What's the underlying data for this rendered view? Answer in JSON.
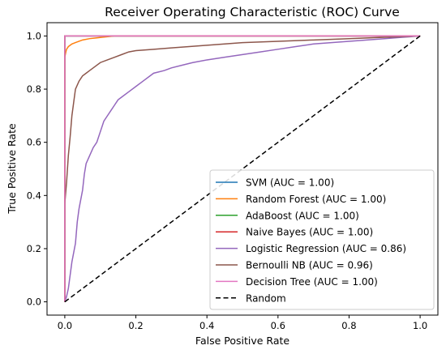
{
  "chart_data": {
    "type": "line",
    "title": "Receiver Operating Characteristic (ROC) Curve",
    "xlabel": "False Positive Rate",
    "ylabel": "True Positive Rate",
    "xlim": [
      -0.05,
      1.05
    ],
    "ylim": [
      -0.05,
      1.05
    ],
    "xticks": [
      0.0,
      0.2,
      0.4,
      0.6,
      0.8,
      1.0
    ],
    "yticks": [
      0.0,
      0.2,
      0.4,
      0.6,
      0.8,
      1.0
    ],
    "xtick_labels": [
      "0.0",
      "0.2",
      "0.4",
      "0.6",
      "0.8",
      "1.0"
    ],
    "ytick_labels": [
      "0.0",
      "0.2",
      "0.4",
      "0.6",
      "0.8",
      "1.0"
    ],
    "grid": false,
    "legend_position": "lower-right",
    "series": [
      {
        "name": "SVM (AUC = 1.00)",
        "color": "#1f77b4",
        "x": [
          0,
          0,
          1
        ],
        "y": [
          0,
          1,
          1
        ]
      },
      {
        "name": "Random Forest (AUC = 1.00)",
        "color": "#ff7f0e",
        "x": [
          0,
          0,
          0.003,
          0.005,
          0.01,
          0.015,
          0.02,
          0.03,
          0.04,
          0.05,
          0.07,
          0.09,
          0.11,
          0.14,
          1
        ],
        "y": [
          0,
          0.92,
          0.94,
          0.95,
          0.96,
          0.965,
          0.97,
          0.975,
          0.98,
          0.985,
          0.99,
          0.993,
          0.996,
          1,
          1
        ]
      },
      {
        "name": "AdaBoost (AUC = 1.00)",
        "color": "#2ca02c",
        "x": [
          0,
          0,
          1
        ],
        "y": [
          0,
          1,
          1
        ]
      },
      {
        "name": "Naive Bayes (AUC = 1.00)",
        "color": "#d62728",
        "x": [
          0,
          0,
          1
        ],
        "y": [
          0,
          1,
          1
        ]
      },
      {
        "name": "Logistic Regression (AUC = 0.86)",
        "color": "#9467bd",
        "x": [
          0,
          0.005,
          0.01,
          0.015,
          0.02,
          0.03,
          0.035,
          0.04,
          0.05,
          0.055,
          0.06,
          0.07,
          0.08,
          0.09,
          0.1,
          0.11,
          0.12,
          0.13,
          0.14,
          0.15,
          0.16,
          0.18,
          0.2,
          0.22,
          0.25,
          0.28,
          0.3,
          0.33,
          0.36,
          0.4,
          0.45,
          0.5,
          0.55,
          0.6,
          0.65,
          0.7,
          0.75,
          0.8,
          0.85,
          0.9,
          0.95,
          1.0
        ],
        "y": [
          0,
          0.02,
          0.05,
          0.1,
          0.15,
          0.22,
          0.3,
          0.35,
          0.42,
          0.48,
          0.52,
          0.55,
          0.58,
          0.6,
          0.64,
          0.68,
          0.7,
          0.72,
          0.74,
          0.76,
          0.77,
          0.79,
          0.81,
          0.83,
          0.86,
          0.87,
          0.88,
          0.89,
          0.9,
          0.91,
          0.92,
          0.93,
          0.94,
          0.95,
          0.96,
          0.97,
          0.975,
          0.98,
          0.985,
          0.99,
          0.995,
          1.0
        ]
      },
      {
        "name": "Bernoulli NB (AUC = 0.96)",
        "color": "#8c564b",
        "x": [
          0,
          0,
          0.005,
          0.01,
          0.015,
          0.02,
          0.025,
          0.03,
          0.04,
          0.05,
          0.06,
          0.07,
          0.08,
          0.1,
          0.12,
          0.14,
          0.16,
          0.18,
          0.2,
          0.25,
          0.3,
          0.35,
          0.4,
          0.5,
          0.6,
          0.7,
          0.8,
          0.9,
          1.0
        ],
        "y": [
          0,
          0.37,
          0.45,
          0.55,
          0.62,
          0.7,
          0.75,
          0.8,
          0.83,
          0.85,
          0.86,
          0.87,
          0.88,
          0.9,
          0.91,
          0.92,
          0.93,
          0.94,
          0.945,
          0.95,
          0.955,
          0.96,
          0.965,
          0.975,
          0.98,
          0.985,
          0.99,
          0.995,
          1.0
        ]
      },
      {
        "name": "Decision Tree (AUC = 1.00)",
        "color": "#e377c2",
        "x": [
          0,
          0,
          1
        ],
        "y": [
          0,
          1,
          1
        ]
      },
      {
        "name": "Random",
        "color": "#000000",
        "dashed": true,
        "x": [
          0,
          1
        ],
        "y": [
          0,
          1
        ]
      }
    ]
  }
}
